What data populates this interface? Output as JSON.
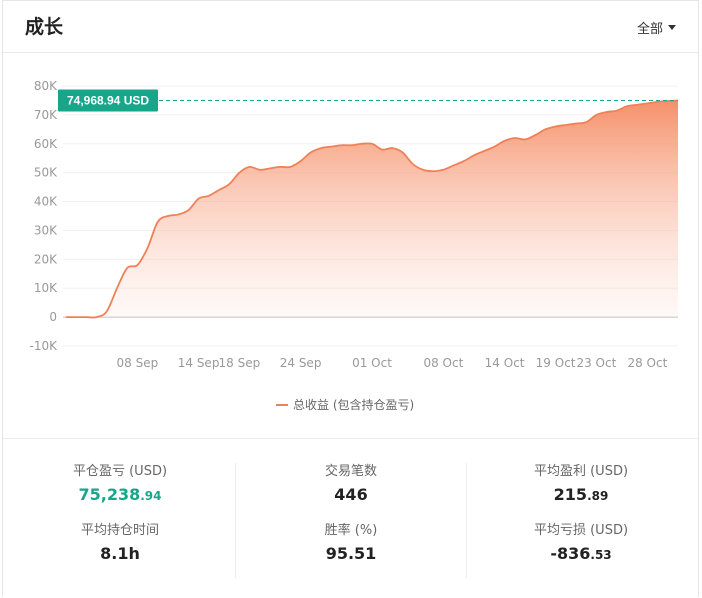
{
  "header": {
    "title": "成长",
    "filter_label": "全部"
  },
  "chart_data": {
    "type": "area",
    "y_ticks": [
      "80K",
      "70K",
      "60K",
      "50K",
      "40K",
      "30K",
      "20K",
      "10K",
      "0",
      "-10K"
    ],
    "x_ticks": [
      "08 Sep",
      "14 Sep",
      "18 Sep",
      "24 Sep",
      "01 Oct",
      "08 Oct",
      "14 Oct",
      "19 Oct",
      "23 Oct",
      "28 Oct"
    ],
    "ylim": [
      -10000,
      80000
    ],
    "grid": true,
    "legend_position": "bottom",
    "legend_label": "总收益 (包含持仓盈亏)",
    "annotation_label": "74,968.94 USD",
    "annotation_value": 74968.94,
    "line_color": "#f08056",
    "annotation_color": "#17a68a",
    "series": [
      {
        "name": "总收益 (包含持仓盈亏)",
        "x": [
          "01 Sep",
          "02 Sep",
          "03 Sep",
          "04 Sep",
          "05 Sep",
          "06 Sep",
          "07 Sep",
          "08 Sep",
          "09 Sep",
          "10 Sep",
          "11 Sep",
          "12 Sep",
          "13 Sep",
          "14 Sep",
          "15 Sep",
          "16 Sep",
          "17 Sep",
          "18 Sep",
          "19 Sep",
          "20 Sep",
          "21 Sep",
          "22 Sep",
          "23 Sep",
          "24 Sep",
          "25 Sep",
          "26 Sep",
          "27 Sep",
          "28 Sep",
          "29 Sep",
          "30 Sep",
          "01 Oct",
          "02 Oct",
          "03 Oct",
          "04 Oct",
          "05 Oct",
          "06 Oct",
          "07 Oct",
          "08 Oct",
          "09 Oct",
          "10 Oct",
          "11 Oct",
          "12 Oct",
          "13 Oct",
          "14 Oct",
          "15 Oct",
          "16 Oct",
          "17 Oct",
          "18 Oct",
          "19 Oct",
          "20 Oct",
          "21 Oct",
          "22 Oct",
          "23 Oct",
          "24 Oct",
          "25 Oct",
          "26 Oct",
          "27 Oct",
          "28 Oct",
          "29 Oct",
          "30 Oct",
          "31 Oct"
        ],
        "values": [
          0,
          0,
          0,
          0,
          2000,
          10000,
          17000,
          18000,
          24000,
          33000,
          35000,
          35500,
          37000,
          41000,
          42000,
          44000,
          46000,
          50000,
          52000,
          51000,
          51500,
          52000,
          52000,
          54000,
          57000,
          58500,
          59000,
          59500,
          59500,
          60000,
          60000,
          58000,
          58500,
          57000,
          53000,
          51000,
          50500,
          51000,
          52500,
          54000,
          56000,
          57500,
          59000,
          61000,
          62000,
          61500,
          63000,
          65000,
          66000,
          66500,
          67000,
          67500,
          70000,
          71000,
          71500,
          73000,
          73500,
          74000,
          74500,
          74800,
          74968.94
        ]
      }
    ]
  },
  "stats": {
    "closed_pnl": {
      "label": "平仓盈亏 (USD)",
      "int": "75,238",
      "dec": ".94"
    },
    "trade_count": {
      "label": "交易笔数",
      "value": "446"
    },
    "avg_profit": {
      "label": "平均盈利 (USD)",
      "int": "215",
      "dec": ".89"
    },
    "avg_hold_time": {
      "label": "平均持仓时间",
      "value": "8.1h"
    },
    "win_rate": {
      "label": "胜率 (%)",
      "value": "95.51"
    },
    "avg_loss": {
      "label": "平均亏损 (USD)",
      "int": "-836",
      "dec": ".53"
    }
  }
}
